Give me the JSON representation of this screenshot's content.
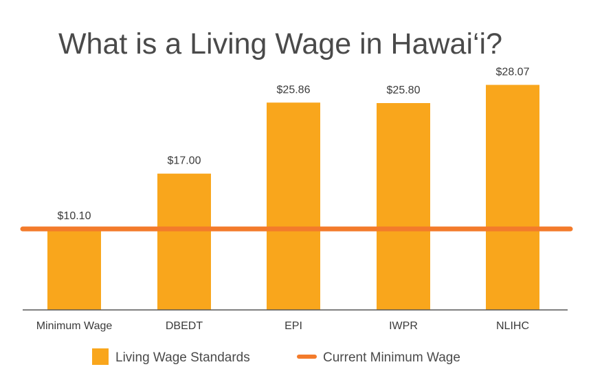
{
  "chart_data": {
    "type": "bar",
    "title": "What is a Living Wage in Hawai‘i?",
    "xlabel": "",
    "ylabel": "",
    "categories": [
      "Minimum Wage",
      "DBEDT",
      "EPI",
      "IWPR",
      "NLIHC"
    ],
    "values": [
      10.1,
      17.0,
      25.86,
      25.8,
      28.07
    ],
    "value_labels": [
      "$10.10",
      "$17.00",
      "$25.86",
      "$25.80",
      "$28.07"
    ],
    "ylim": [
      0,
      30
    ],
    "grid": false,
    "reference_line": {
      "name": "Current Minimum Wage",
      "value": 10.1
    },
    "legend": {
      "placement": "bottom",
      "entries": [
        "Living Wage Standards",
        "Current Minimum Wage"
      ]
    },
    "colors": {
      "bar": "#F9A61C",
      "line": "#F37B2B",
      "axis": "#555555"
    }
  }
}
